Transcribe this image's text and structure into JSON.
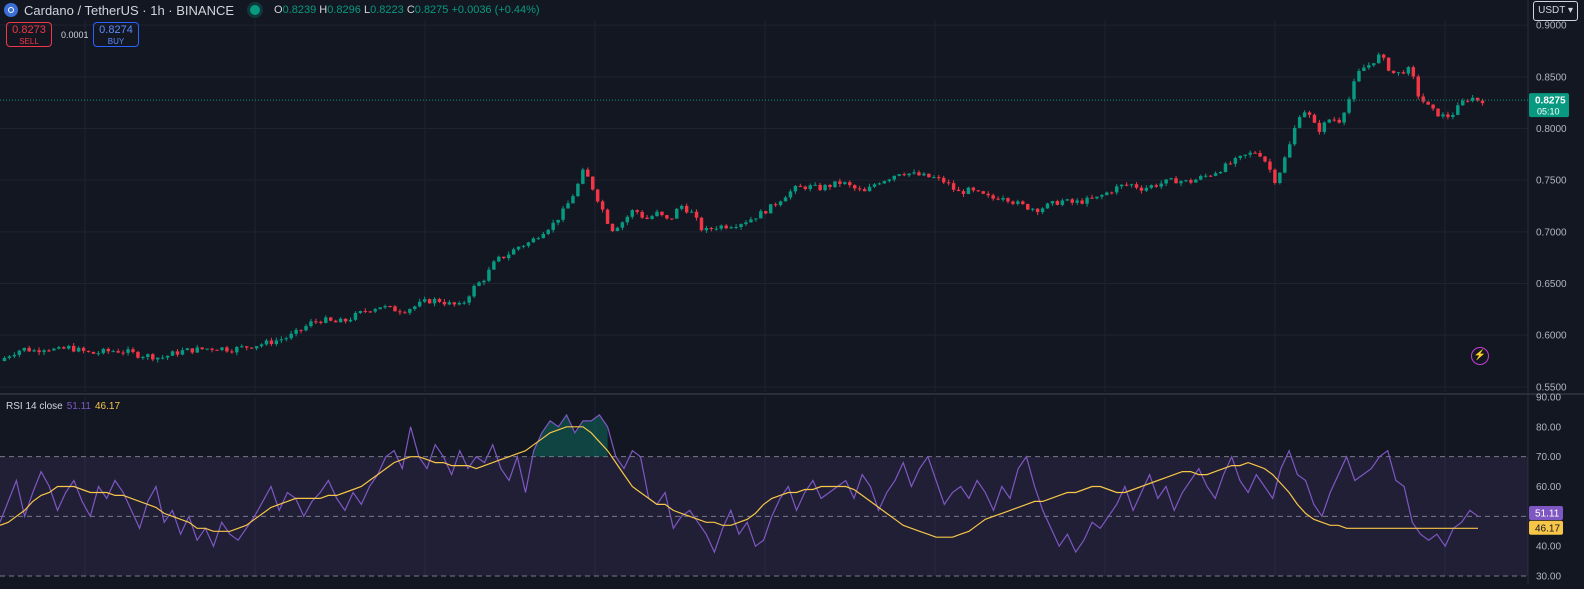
{
  "header": {
    "title": "Cardano / TetherUS · 1h · BINANCE",
    "ohlc": {
      "o_label": "O",
      "o": "0.8239",
      "h_label": "H",
      "h": "0.8296",
      "l_label": "L",
      "l": "0.8223",
      "c_label": "C",
      "c": "0.8275",
      "change": "+0.0036 (+0.44%)"
    }
  },
  "trade": {
    "sell_price": "0.8273",
    "sell_label": "SELL",
    "spread": "0.0001",
    "buy_price": "0.8274",
    "buy_label": "BUY"
  },
  "currency_button": "USDT",
  "rsi_legend": {
    "label": "RSI 14 close",
    "rsi_value": "51.11",
    "ma_value": "46.17"
  },
  "colors": {
    "up": "#089981",
    "down": "#f23645",
    "rsi": "#7e57c2",
    "rsi_ma": "#f7c548",
    "background": "#131722",
    "grid": "#1f2330",
    "axis_text": "#b2b5be"
  },
  "icons": {
    "symbol": "cardano-logo-icon",
    "status": "market-open-dot-icon",
    "alert": "lightning-bolt-icon",
    "currency": "chevron-down-icon"
  },
  "chart_data": [
    {
      "type": "candlestick",
      "x_count": 300,
      "ylim": [
        0.545,
        0.905
      ],
      "y_ticks": [
        0.9,
        0.85,
        0.8,
        0.75,
        0.7,
        0.65,
        0.6,
        0.55
      ],
      "y_tick_labels": [
        "0.9000",
        "0.8500",
        "0.8000",
        "0.7500",
        "0.7000",
        "0.6500",
        "0.6000",
        "0.5500"
      ],
      "last_price": 0.8275,
      "last_price_label": "0.8275",
      "countdown": "05:10",
      "close_path": [
        [
          0,
          0.575
        ],
        [
          10,
          0.582
        ],
        [
          20,
          0.587
        ],
        [
          30,
          0.585
        ],
        [
          40,
          0.588
        ],
        [
          50,
          0.585
        ],
        [
          60,
          0.588
        ],
        [
          70,
          0.585
        ],
        [
          80,
          0.582
        ],
        [
          90,
          0.584
        ],
        [
          100,
          0.585
        ],
        [
          110,
          0.584
        ],
        [
          120,
          0.581
        ],
        [
          130,
          0.58
        ],
        [
          140,
          0.578
        ],
        [
          150,
          0.582
        ],
        [
          160,
          0.585
        ],
        [
          170,
          0.586
        ],
        [
          180,
          0.587
        ],
        [
          190,
          0.588
        ],
        [
          200,
          0.586
        ],
        [
          210,
          0.588
        ],
        [
          220,
          0.59
        ],
        [
          230,
          0.592
        ],
        [
          240,
          0.595
        ],
        [
          250,
          0.598
        ],
        [
          260,
          0.604
        ],
        [
          270,
          0.612
        ],
        [
          280,
          0.615
        ],
        [
          290,
          0.612
        ],
        [
          300,
          0.614
        ],
        [
          310,
          0.62
        ],
        [
          320,
          0.625
        ],
        [
          330,
          0.628
        ],
        [
          340,
          0.625
        ],
        [
          350,
          0.624
        ],
        [
          360,
          0.628
        ],
        [
          370,
          0.633
        ],
        [
          380,
          0.634
        ],
        [
          390,
          0.63
        ],
        [
          400,
          0.628
        ],
        [
          410,
          0.645
        ],
        [
          420,
          0.655
        ],
        [
          430,
          0.672
        ],
        [
          440,
          0.678
        ],
        [
          450,
          0.686
        ],
        [
          460,
          0.69
        ],
        [
          470,
          0.7
        ],
        [
          480,
          0.708
        ],
        [
          490,
          0.722
        ],
        [
          500,
          0.742
        ],
        [
          505,
          0.758
        ],
        [
          510,
          0.752
        ],
        [
          515,
          0.74
        ],
        [
          520,
          0.728
        ],
        [
          530,
          0.702
        ],
        [
          540,
          0.71
        ],
        [
          550,
          0.722
        ],
        [
          560,
          0.712
        ],
        [
          570,
          0.718
        ],
        [
          580,
          0.71
        ],
        [
          590,
          0.726
        ],
        [
          600,
          0.718
        ],
        [
          610,
          0.7
        ],
        [
          620,
          0.705
        ],
        [
          630,
          0.706
        ],
        [
          640,
          0.708
        ],
        [
          650,
          0.712
        ],
        [
          660,
          0.718
        ],
        [
          670,
          0.725
        ],
        [
          680,
          0.735
        ],
        [
          690,
          0.742
        ],
        [
          700,
          0.744
        ],
        [
          710,
          0.742
        ],
        [
          720,
          0.745
        ],
        [
          730,
          0.748
        ],
        [
          740,
          0.742
        ],
        [
          750,
          0.738
        ],
        [
          760,
          0.748
        ],
        [
          770,
          0.752
        ],
        [
          780,
          0.758
        ],
        [
          790,
          0.756
        ],
        [
          800,
          0.754
        ],
        [
          810,
          0.752
        ],
        [
          820,
          0.748
        ],
        [
          830,
          0.738
        ],
        [
          840,
          0.74
        ],
        [
          850,
          0.736
        ],
        [
          860,
          0.732
        ],
        [
          870,
          0.735
        ],
        [
          880,
          0.728
        ],
        [
          890,
          0.724
        ],
        [
          900,
          0.722
        ],
        [
          910,
          0.726
        ],
        [
          920,
          0.73
        ],
        [
          930,
          0.728
        ],
        [
          940,
          0.73
        ],
        [
          950,
          0.732
        ],
        [
          960,
          0.738
        ],
        [
          970,
          0.744
        ],
        [
          980,
          0.746
        ],
        [
          990,
          0.742
        ],
        [
          1000,
          0.745
        ],
        [
          1010,
          0.748
        ],
        [
          1020,
          0.75
        ],
        [
          1030,
          0.748
        ],
        [
          1040,
          0.752
        ],
        [
          1050,
          0.756
        ],
        [
          1060,
          0.762
        ],
        [
          1070,
          0.768
        ],
        [
          1080,
          0.774
        ],
        [
          1090,
          0.778
        ],
        [
          1095,
          0.772
        ],
        [
          1100,
          0.762
        ],
        [
          1105,
          0.75
        ],
        [
          1110,
          0.76
        ],
        [
          1115,
          0.775
        ],
        [
          1120,
          0.79
        ],
        [
          1125,
          0.812
        ],
        [
          1130,
          0.818
        ],
        [
          1135,
          0.812
        ],
        [
          1140,
          0.802
        ],
        [
          1145,
          0.798
        ],
        [
          1150,
          0.808
        ],
        [
          1155,
          0.81
        ],
        [
          1160,
          0.806
        ],
        [
          1165,
          0.818
        ],
        [
          1170,
          0.83
        ],
        [
          1175,
          0.848
        ],
        [
          1180,
          0.858
        ],
        [
          1185,
          0.86
        ],
        [
          1190,
          0.865
        ],
        [
          1195,
          0.87
        ],
        [
          1200,
          0.865
        ],
        [
          1205,
          0.856
        ],
        [
          1210,
          0.852
        ],
        [
          1215,
          0.855
        ],
        [
          1220,
          0.858
        ],
        [
          1225,
          0.848
        ],
        [
          1230,
          0.83
        ],
        [
          1235,
          0.825
        ],
        [
          1240,
          0.818
        ],
        [
          1245,
          0.815
        ],
        [
          1250,
          0.812
        ],
        [
          1255,
          0.812
        ],
        [
          1260,
          0.815
        ],
        [
          1265,
          0.822
        ],
        [
          1270,
          0.828
        ],
        [
          1275,
          0.83
        ],
        [
          1280,
          0.828
        ],
        [
          1285,
          0.8275
        ]
      ]
    },
    {
      "type": "line",
      "title": "RSI 14 close",
      "ylim": [
        30,
        90
      ],
      "y_ticks": [
        90,
        80,
        70,
        60,
        50,
        40,
        30
      ],
      "y_tick_labels": [
        "90.00",
        "80.00",
        "70.00",
        "60.00",
        "50.00",
        "40.00",
        "30.00"
      ],
      "band": [
        30,
        70
      ],
      "levels": [
        70,
        50,
        30
      ],
      "series": [
        {
          "values": [
            48,
            55,
            62,
            50,
            58,
            65,
            60,
            52,
            58,
            62,
            55,
            50,
            60,
            56,
            62,
            58,
            52,
            46,
            55,
            60,
            48,
            52,
            44,
            50,
            42,
            46,
            40,
            48,
            44,
            42,
            46,
            50,
            55,
            60,
            52,
            58,
            56,
            50,
            55,
            58,
            62,
            56,
            52,
            58,
            54,
            60,
            64,
            70,
            72,
            66,
            80,
            70,
            66,
            74,
            70,
            64,
            72,
            66,
            70,
            68,
            74,
            66,
            62,
            70,
            58,
            72,
            78,
            82,
            80,
            84,
            78,
            82,
            82,
            84,
            80,
            70,
            66,
            72,
            70,
            56,
            54,
            58,
            46,
            50,
            52,
            48,
            44,
            38,
            46,
            52,
            44,
            48,
            40,
            42,
            50,
            56,
            60,
            52,
            58,
            62,
            56,
            58,
            60,
            62,
            56,
            64,
            60,
            52,
            58,
            62,
            68,
            60,
            66,
            70,
            62,
            54,
            58,
            60,
            56,
            62,
            58,
            52,
            60,
            56,
            66,
            70,
            60,
            52,
            46,
            40,
            44,
            38,
            42,
            48,
            46,
            50,
            54,
            60,
            52,
            58,
            64,
            56,
            60,
            52,
            58,
            62,
            66,
            60,
            56,
            64,
            70,
            62,
            58,
            64,
            60,
            56,
            66,
            72,
            64,
            62,
            54,
            50,
            58,
            64,
            70,
            62,
            64,
            66,
            70,
            72,
            62,
            60,
            48,
            44,
            42,
            44,
            40,
            46,
            48,
            52,
            50
          ],
          "name": ""
        },
        {
          "values": [
            47,
            48,
            50,
            52,
            55,
            57,
            58,
            60,
            60,
            60,
            59,
            58,
            58,
            58,
            57,
            57,
            56,
            55,
            54,
            53,
            51,
            50,
            49,
            48,
            46,
            46,
            45,
            45,
            45,
            46,
            47,
            49,
            51,
            53,
            54,
            55,
            56,
            56,
            56,
            56,
            57,
            57,
            58,
            59,
            60,
            62,
            64,
            66,
            68,
            69,
            70,
            70,
            69,
            68,
            68,
            67,
            67,
            67,
            66,
            67,
            68,
            69,
            70,
            71,
            72,
            74,
            76,
            78,
            79,
            80,
            80,
            80,
            78,
            75,
            72,
            68,
            64,
            60,
            58,
            56,
            54,
            54,
            52,
            51,
            50,
            49,
            48,
            48,
            47,
            47,
            48,
            49,
            51,
            54,
            56,
            57,
            58,
            58,
            59,
            59,
            60,
            60,
            60,
            60,
            59,
            57,
            55,
            53,
            51,
            49,
            47,
            46,
            45,
            44,
            43,
            43,
            43,
            44,
            45,
            47,
            49,
            50,
            51,
            52,
            53,
            54,
            55,
            55,
            56,
            57,
            58,
            58,
            59,
            60,
            60,
            59,
            58,
            58,
            59,
            60,
            61,
            62,
            63,
            64,
            65,
            65,
            64,
            64,
            65,
            66,
            67,
            67,
            68,
            67,
            66,
            64,
            61,
            58,
            54,
            51,
            49,
            48,
            47,
            47,
            46,
            46,
            46,
            46,
            46,
            46,
            46,
            46,
            46,
            46,
            46,
            46,
            46,
            46,
            46,
            46,
            46
          ],
          "name": ""
        }
      ],
      "last_rsi_label": "51.11",
      "last_ma_label": "46.17"
    }
  ]
}
